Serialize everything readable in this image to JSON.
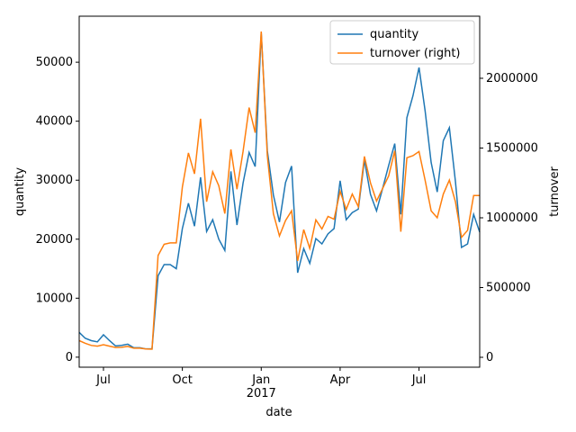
{
  "chart_data": {
    "type": "line",
    "xlabel": "date",
    "ylabel": "quantity",
    "y2label": "turnover",
    "x": [
      0,
      1,
      2,
      3,
      4,
      5,
      6,
      7,
      8,
      9,
      10,
      11,
      12,
      13,
      14,
      15,
      16,
      17,
      18,
      19,
      20,
      21,
      22,
      23,
      24,
      25,
      26,
      27,
      28,
      29,
      30,
      31,
      32,
      33,
      34,
      35,
      36,
      37,
      38,
      39,
      40,
      41,
      42,
      43,
      44,
      45,
      46,
      47,
      48,
      49,
      50,
      51,
      52,
      53,
      54,
      55,
      56,
      57,
      58,
      59,
      60,
      61,
      62,
      63,
      64,
      65,
      66
    ],
    "xlim": [
      0,
      66
    ],
    "xticks": [
      {
        "value": 4,
        "label": "Jul"
      },
      {
        "value": 17,
        "label": "Oct"
      },
      {
        "value": 30,
        "label": "Jan\n2017"
      },
      {
        "value": 43,
        "label": "Apr"
      },
      {
        "value": 56,
        "label": "Jul"
      }
    ],
    "ylim": [
      -1700,
      57800
    ],
    "yticks": [
      0,
      10000,
      20000,
      30000,
      40000,
      50000
    ],
    "y2lim": [
      -71000,
      2445000
    ],
    "y2ticks": [
      0,
      500000,
      1000000,
      1500000,
      2000000
    ],
    "legend": "upper right",
    "series": [
      {
        "name": "quantity",
        "color": "#1f77b4",
        "values": [
          4200,
          3200,
          2800,
          2600,
          3800,
          2800,
          1900,
          2000,
          2200,
          1600,
          1600,
          1400,
          1400,
          13800,
          15700,
          15700,
          15000,
          21800,
          26100,
          22200,
          30500,
          21300,
          23300,
          20000,
          18100,
          31500,
          22400,
          29500,
          34700,
          32300,
          55000,
          35000,
          27500,
          22900,
          29600,
          32400,
          14300,
          18400,
          15900,
          20100,
          19200,
          20900,
          21800,
          29900,
          23300,
          24500,
          25100,
          33400,
          27600,
          24800,
          28600,
          32500,
          36200,
          24200,
          40600,
          44300,
          49100,
          41800,
          33000,
          28000,
          36700,
          38900,
          29800,
          18600,
          19200,
          24200,
          21200
        ]
      },
      {
        "name": "turnover (right)",
        "color": "#ff7f0e",
        "axis": "y2",
        "values": [
          120000,
          100000,
          85000,
          80000,
          90000,
          80000,
          70000,
          72000,
          78000,
          65000,
          65000,
          60000,
          58000,
          730000,
          810000,
          820000,
          820000,
          1220000,
          1465000,
          1315000,
          1710000,
          1115000,
          1330000,
          1230000,
          1030000,
          1490000,
          1205000,
          1475000,
          1790000,
          1610000,
          2335000,
          1445000,
          1030000,
          870000,
          980000,
          1050000,
          690000,
          915000,
          780000,
          985000,
          920000,
          1010000,
          990000,
          1190000,
          1060000,
          1170000,
          1080000,
          1440000,
          1250000,
          1120000,
          1210000,
          1300000,
          1480000,
          900000,
          1430000,
          1445000,
          1475000,
          1270000,
          1050000,
          1000000,
          1170000,
          1270000,
          1115000,
          860000,
          910000,
          1160000,
          1160000
        ]
      }
    ]
  }
}
